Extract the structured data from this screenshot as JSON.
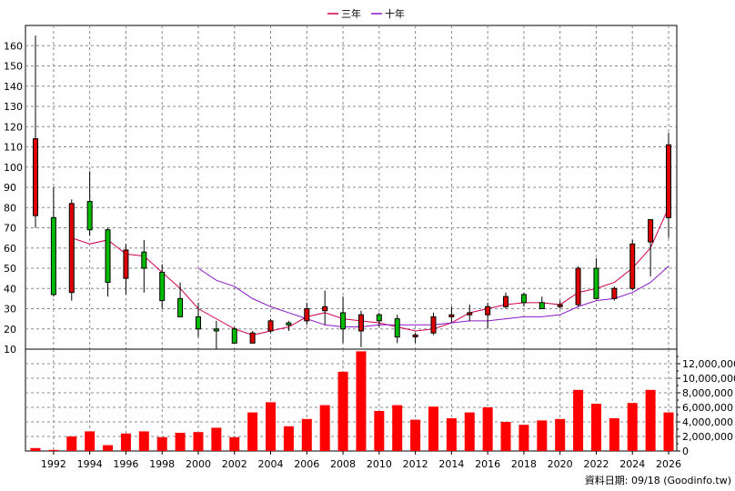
{
  "chart_data": {
    "type": "candlestick",
    "legend": [
      {
        "label": "三年",
        "color": "#d2004f"
      },
      {
        "label": "十年",
        "color": "#8a17c8"
      }
    ],
    "legend_position": "top-center",
    "grid": true,
    "price_axis": {
      "ylim": [
        10,
        170
      ],
      "ticks": [
        10,
        20,
        30,
        40,
        50,
        60,
        70,
        80,
        90,
        100,
        110,
        120,
        130,
        140,
        150,
        160
      ],
      "tick_labels": [
        "10",
        "20",
        "30",
        "40",
        "50",
        "60",
        "70",
        "80",
        "90",
        "100",
        "110",
        "120",
        "130",
        "140",
        "150",
        "160"
      ]
    },
    "volume_axis": {
      "ylim": [
        0,
        14000000
      ],
      "ticks": [
        0,
        2000000,
        4000000,
        6000000,
        8000000,
        10000000,
        12000000
      ],
      "tick_labels": [
        "0",
        "2,000,000",
        "4,000,000",
        "6,000,000",
        "8,000,000",
        "10,000,000",
        "12,000,000"
      ]
    },
    "x_axis": {
      "ticks": [
        1992,
        1994,
        1996,
        1998,
        2000,
        2002,
        2004,
        2006,
        2008,
        2010,
        2012,
        2014,
        2016,
        2018,
        2020,
        2022,
        2024,
        2026
      ],
      "tick_labels": [
        "1992",
        "1994",
        "1996",
        "1998",
        "2000",
        "2002",
        "2004",
        "2006",
        "2008",
        "2010",
        "2012",
        "2014",
        "2016",
        "2018",
        "2020",
        "2022",
        "2024",
        "2026"
      ]
    },
    "up_color": "#dd0000",
    "down_color": "#00bb00",
    "volume_color": "#ff0000",
    "candles": [
      {
        "x": 1991,
        "o": 76,
        "h": 165,
        "l": 70,
        "c": 114
      },
      {
        "x": 1992,
        "o": 75,
        "h": 90,
        "l": 36,
        "c": 37
      },
      {
        "x": 1993,
        "o": 38,
        "h": 84,
        "l": 34,
        "c": 82
      },
      {
        "x": 1994,
        "o": 83,
        "h": 98,
        "l": 66,
        "c": 69
      },
      {
        "x": 1995,
        "o": 69,
        "h": 70,
        "l": 36,
        "c": 43
      },
      {
        "x": 1996,
        "o": 45,
        "h": 62,
        "l": 37,
        "c": 59
      },
      {
        "x": 1997,
        "o": 58,
        "h": 64,
        "l": 38,
        "c": 50
      },
      {
        "x": 1998,
        "o": 48,
        "h": 52,
        "l": 30,
        "c": 34
      },
      {
        "x": 1999,
        "o": 35,
        "h": 43,
        "l": 26,
        "c": 26
      },
      {
        "x": 2000,
        "o": 26,
        "h": 33,
        "l": 16,
        "c": 20
      },
      {
        "x": 2001,
        "o": 20,
        "h": 24,
        "l": 10,
        "c": 19
      },
      {
        "x": 2002,
        "o": 20,
        "h": 21,
        "l": 13,
        "c": 13
      },
      {
        "x": 2003,
        "o": 13,
        "h": 19,
        "l": 13,
        "c": 18
      },
      {
        "x": 2004,
        "o": 19,
        "h": 25,
        "l": 18,
        "c": 24
      },
      {
        "x": 2005,
        "o": 23,
        "h": 24,
        "l": 19,
        "c": 22
      },
      {
        "x": 2006,
        "o": 24,
        "h": 33,
        "l": 22,
        "c": 30
      },
      {
        "x": 2007,
        "o": 29,
        "h": 39,
        "l": 22,
        "c": 31
      },
      {
        "x": 2008,
        "o": 28,
        "h": 36,
        "l": 13,
        "c": 20
      },
      {
        "x": 2009,
        "o": 19,
        "h": 29,
        "l": 11,
        "c": 27
      },
      {
        "x": 2010,
        "o": 27,
        "h": 28,
        "l": 21,
        "c": 24
      },
      {
        "x": 2011,
        "o": 25,
        "h": 27,
        "l": 13,
        "c": 16
      },
      {
        "x": 2012,
        "o": 17,
        "h": 18,
        "l": 13,
        "c": 17
      },
      {
        "x": 2013,
        "o": 18,
        "h": 28,
        "l": 17,
        "c": 26
      },
      {
        "x": 2014,
        "o": 26,
        "h": 31,
        "l": 23,
        "c": 27
      },
      {
        "x": 2015,
        "o": 27,
        "h": 32,
        "l": 24,
        "c": 28
      },
      {
        "x": 2016,
        "o": 27,
        "h": 33,
        "l": 20,
        "c": 31
      },
      {
        "x": 2017,
        "o": 31,
        "h": 38,
        "l": 30,
        "c": 36
      },
      {
        "x": 2018,
        "o": 37,
        "h": 38,
        "l": 31,
        "c": 33
      },
      {
        "x": 2019,
        "o": 33,
        "h": 36,
        "l": 30,
        "c": 30
      },
      {
        "x": 2020,
        "o": 31,
        "h": 34,
        "l": 30,
        "c": 32
      },
      {
        "x": 2021,
        "o": 32,
        "h": 51,
        "l": 31,
        "c": 50
      },
      {
        "x": 2022,
        "o": 50,
        "h": 55,
        "l": 35,
        "c": 35
      },
      {
        "x": 2023,
        "o": 35,
        "h": 41,
        "l": 34,
        "c": 40
      },
      {
        "x": 2024,
        "o": 40,
        "h": 64,
        "l": 39,
        "c": 62
      },
      {
        "x": 2025,
        "o": 63,
        "h": 74,
        "l": 46,
        "c": 74
      },
      {
        "x": 2026,
        "o": 75,
        "h": 117,
        "l": 65,
        "c": 111
      }
    ],
    "series": [
      {
        "name": "三年",
        "x": [
          1993,
          1994,
          1995,
          1996,
          1997,
          1998,
          1999,
          2000,
          2001,
          2002,
          2003,
          2004,
          2005,
          2006,
          2007,
          2008,
          2009,
          2010,
          2011,
          2012,
          2013,
          2014,
          2015,
          2016,
          2017,
          2018,
          2019,
          2020,
          2021,
          2022,
          2023,
          2024,
          2025,
          2026
        ],
        "values": [
          65,
          62,
          64,
          57,
          56,
          48,
          40,
          30,
          25,
          20,
          17,
          19,
          21,
          26,
          28,
          25,
          24,
          23,
          21,
          19,
          20,
          23,
          28,
          30,
          32,
          33,
          33,
          32,
          38,
          40,
          43,
          50,
          60,
          80
        ]
      },
      {
        "name": "十年",
        "x": [
          2000,
          2001,
          2002,
          2003,
          2004,
          2005,
          2006,
          2007,
          2008,
          2009,
          2010,
          2011,
          2012,
          2013,
          2014,
          2015,
          2016,
          2017,
          2018,
          2019,
          2020,
          2021,
          2022,
          2023,
          2024,
          2025,
          2026
        ],
        "values": [
          50,
          44,
          41,
          35,
          31,
          28,
          25,
          22,
          21,
          21,
          22,
          22,
          22,
          22,
          23,
          24,
          24,
          25,
          26,
          26,
          27,
          31,
          34,
          35,
          38,
          43,
          51
        ]
      }
    ],
    "volume": {
      "x": [
        1991,
        1992,
        1993,
        1994,
        1995,
        1996,
        1997,
        1998,
        1999,
        2000,
        2001,
        2002,
        2003,
        2004,
        2005,
        2006,
        2007,
        2008,
        2009,
        2010,
        2011,
        2012,
        2013,
        2014,
        2015,
        2016,
        2017,
        2018,
        2019,
        2020,
        2021,
        2022,
        2023,
        2024,
        2025,
        2026
      ],
      "values": [
        400000,
        150000,
        2000000,
        2700000,
        800000,
        2400000,
        2700000,
        1900000,
        2500000,
        2600000,
        3200000,
        1900000,
        5300000,
        6700000,
        3400000,
        4400000,
        6300000,
        10900000,
        13700000,
        5500000,
        6300000,
        4300000,
        6100000,
        4500000,
        5300000,
        6000000,
        4000000,
        3600000,
        4200000,
        4400000,
        8400000,
        6500000,
        4500000,
        6600000,
        8400000,
        5300000
      ]
    }
  },
  "footer": "資料日期: 09/18  (Goodinfo.tw)"
}
